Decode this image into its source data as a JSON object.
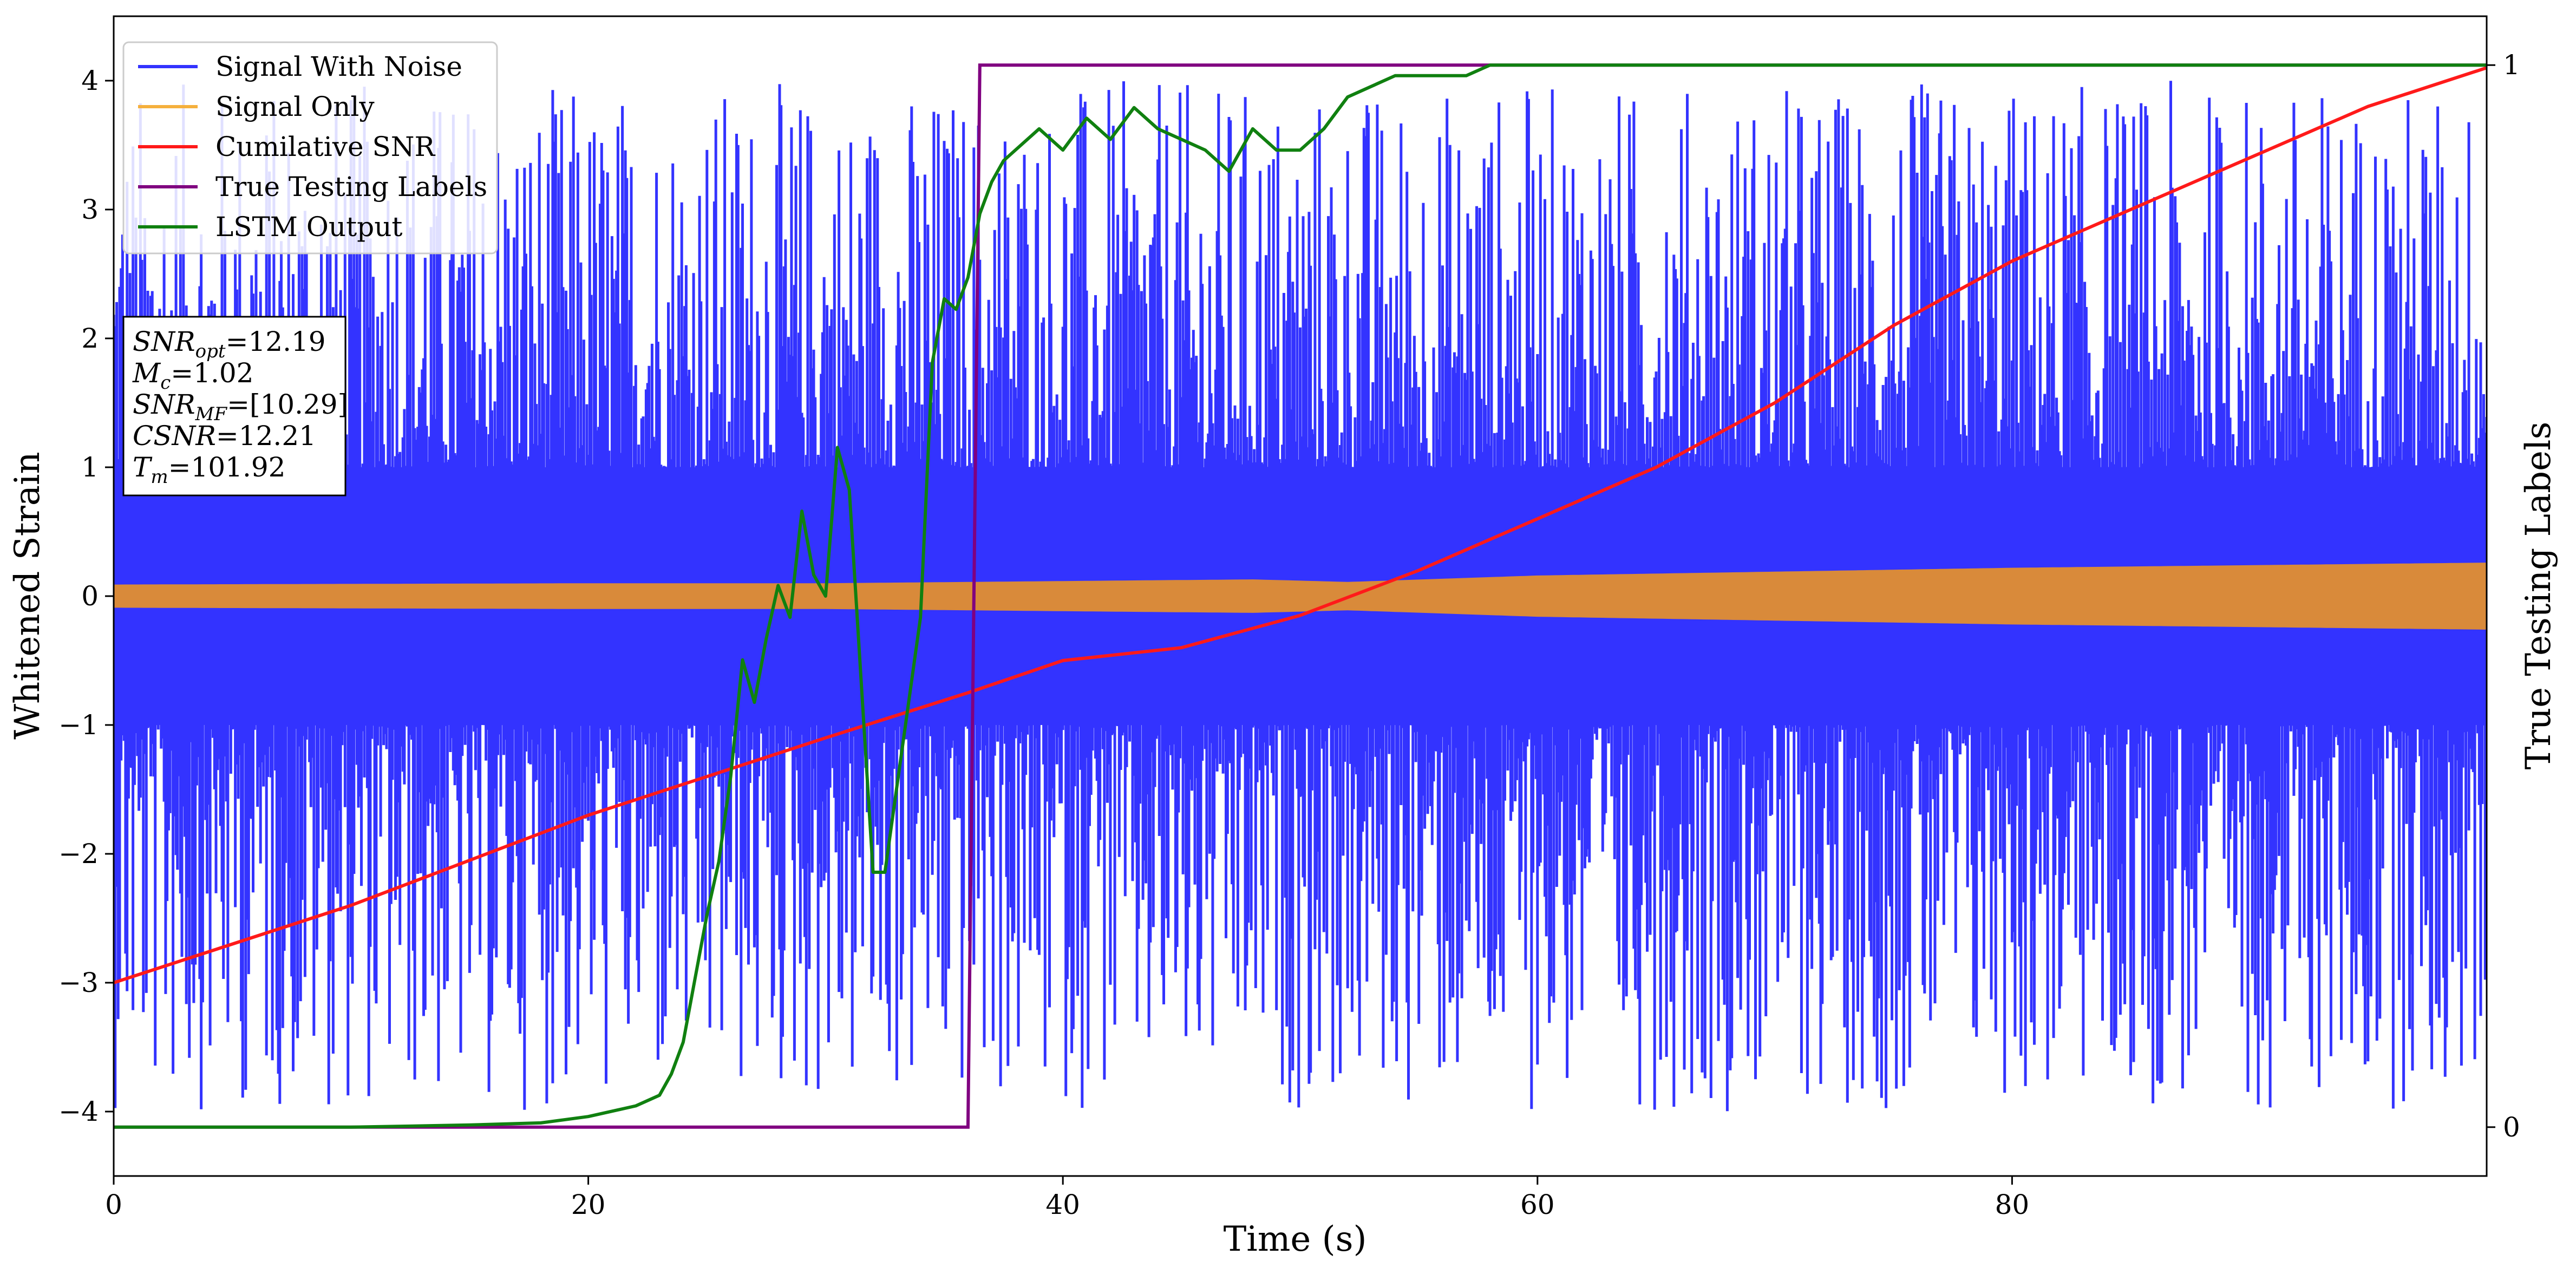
{
  "chart_data": {
    "type": "line",
    "xlabel": "Time (s)",
    "ylabel": "Whitened Strain",
    "ylabel_right": "True Testing Labels",
    "xlim": [
      0,
      100
    ],
    "ylim": [
      -4.5,
      4.5
    ],
    "ylim_right": [
      -0.046,
      1.046
    ],
    "x_ticks": [
      0,
      20,
      40,
      60,
      80
    ],
    "y_ticks": [
      -4,
      -3,
      -2,
      -1,
      0,
      1,
      2,
      3,
      4
    ],
    "y_ticks_right": [
      0,
      1
    ],
    "grid": false,
    "legend_position": "top-left",
    "legend": [
      {
        "name": "Signal With Noise",
        "color": "#3333ff"
      },
      {
        "name": "Signal Only",
        "color": "#f5b03d"
      },
      {
        "name": "Cumilative SNR",
        "color": "#ff1a1a"
      },
      {
        "name": "True Testing Labels",
        "color": "#800080"
      },
      {
        "name": "LSTM Output",
        "color": "#108010"
      }
    ],
    "series": [
      {
        "name": "Signal With Noise",
        "axis": "left",
        "color": "#3333ff",
        "style": "noise-band",
        "core_amplitude": 1.0,
        "peak_range": [
          -4.0,
          4.0
        ]
      },
      {
        "name": "Signal Only",
        "axis": "left",
        "color": "#d98a3a",
        "style": "envelope",
        "x": [
          0,
          20,
          30,
          36,
          42,
          48,
          52,
          60,
          70,
          80,
          90,
          100
        ],
        "amplitude": [
          0.09,
          0.1,
          0.1,
          0.11,
          0.12,
          0.13,
          0.11,
          0.16,
          0.19,
          0.22,
          0.24,
          0.26
        ]
      },
      {
        "name": "Cumilative SNR",
        "axis": "left",
        "color": "#ff1a1a",
        "style": "line",
        "x": [
          0,
          10,
          20,
          30,
          36,
          40,
          45,
          50,
          55,
          60,
          65,
          70,
          75,
          80,
          85,
          90,
          95,
          100
        ],
        "y": [
          -3.0,
          -2.4,
          -1.7,
          -1.1,
          -0.75,
          -0.5,
          -0.4,
          -0.15,
          0.2,
          0.6,
          1.0,
          1.5,
          2.1,
          2.6,
          3.0,
          3.4,
          3.8,
          4.1
        ]
      },
      {
        "name": "True Testing Labels",
        "axis": "right",
        "color": "#800080",
        "style": "line",
        "x": [
          0,
          36.0,
          36.5,
          100
        ],
        "y": [
          0,
          0,
          1,
          1
        ]
      },
      {
        "name": "LSTM Output",
        "axis": "right",
        "color": "#108010",
        "style": "line",
        "x": [
          0,
          10,
          15,
          18,
          20,
          22,
          23,
          23.5,
          24,
          24.5,
          25,
          25.5,
          26,
          26.5,
          27,
          27.5,
          28,
          28.5,
          29,
          29.5,
          30,
          30.5,
          31,
          31.5,
          32,
          32.5,
          33,
          33.5,
          34,
          34.5,
          35,
          35.5,
          36,
          36.5,
          37,
          37.5,
          38,
          39,
          40,
          41,
          42,
          43,
          44,
          45,
          46,
          47,
          48,
          49,
          50,
          51,
          52,
          53,
          54,
          55,
          56,
          57,
          58,
          60,
          65,
          70,
          75,
          80,
          90,
          100
        ],
        "y": [
          0,
          0,
          0.002,
          0.004,
          0.01,
          0.02,
          0.03,
          0.05,
          0.08,
          0.14,
          0.2,
          0.25,
          0.33,
          0.44,
          0.4,
          0.46,
          0.51,
          0.48,
          0.58,
          0.52,
          0.5,
          0.64,
          0.6,
          0.42,
          0.24,
          0.24,
          0.32,
          0.4,
          0.48,
          0.72,
          0.78,
          0.77,
          0.8,
          0.86,
          0.89,
          0.91,
          0.92,
          0.94,
          0.92,
          0.95,
          0.93,
          0.96,
          0.94,
          0.93,
          0.92,
          0.9,
          0.94,
          0.92,
          0.92,
          0.94,
          0.97,
          0.98,
          0.99,
          0.99,
          0.99,
          0.99,
          1.0,
          1.0,
          1.0,
          1.0,
          1.0,
          1.0,
          1.0,
          1.0
        ]
      }
    ]
  },
  "annotation": {
    "lines": [
      {
        "main": "SNR",
        "sub": "opt",
        "value": "=12.19"
      },
      {
        "main": "M",
        "sub": "c",
        "value": "=1.02"
      },
      {
        "main": "SNR",
        "sub": "MF",
        "value": "=[10.29]"
      },
      {
        "main": "CSNR",
        "sub": "",
        "value": "=12.21"
      },
      {
        "main": "T",
        "sub": "m",
        "value": "=101.92"
      }
    ]
  }
}
